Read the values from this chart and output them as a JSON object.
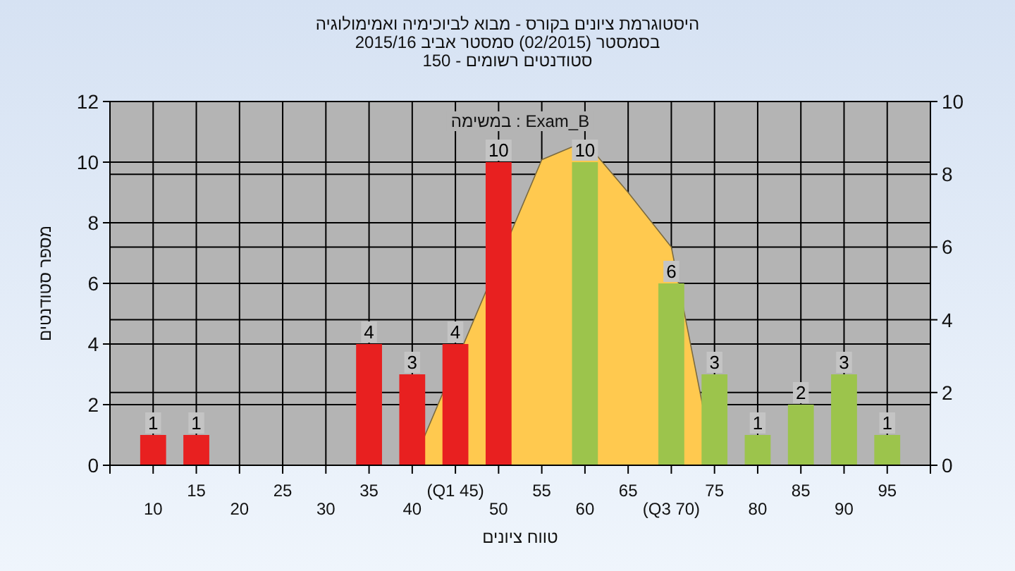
{
  "chart_data": {
    "type": "bar",
    "title": "היסטוגרמת ציונים בקורס - מבוא לביוכימיה ואמימולוגיה",
    "subtitle": "בסמסטר  (02/2015)  סמסטר אביב 2015/16",
    "annotations": [
      "סטודנטים רשומים - 150",
      "Exam_B : במשימה"
    ],
    "xlabel": "טווח ציונים",
    "ylabel": "מספר סטודנטים",
    "categories": [
      "10",
      "15",
      "20",
      "25",
      "30",
      "35",
      "40",
      "(Q1 45)",
      "50",
      "55",
      "60",
      "65",
      "(Q3 70)",
      "75",
      "80",
      "85",
      "90",
      "95"
    ],
    "series": [
      {
        "values": [
          1,
          1,
          null,
          null,
          null,
          4,
          3,
          4,
          10,
          null,
          10,
          null,
          6,
          3,
          1,
          2,
          3,
          1
        ],
        "value_labels": [
          "1",
          "1",
          null,
          null,
          null,
          "4",
          "3",
          "4",
          "10",
          null,
          "10",
          null,
          "6",
          "3",
          "1",
          "2",
          "3",
          "1"
        ],
        "colors": [
          "#e82020",
          "#e82020",
          null,
          null,
          null,
          "#e82020",
          "#e82020",
          "#e82020",
          "#e82020",
          null,
          "#9cc44c",
          null,
          "#9cc44c",
          "#9cc44c",
          "#9cc44c",
          "#9cc44c",
          "#9cc44c",
          "#9cc44c"
        ]
      },
      {
        "type": "area",
        "axis": "y2",
        "color": "#ffc94f",
        "values": [
          null,
          null,
          null,
          null,
          null,
          null,
          0,
          null,
          null,
          8.4,
          8.9,
          7.5,
          6.0,
          0,
          null,
          null,
          null,
          null
        ]
      }
    ],
    "ylim": [
      0,
      12
    ],
    "yticks": [
      0,
      2,
      4,
      6,
      8,
      10,
      12
    ],
    "y2lim": [
      0,
      10
    ],
    "y2ticks": [
      0,
      2,
      4,
      6,
      8,
      10
    ],
    "grid": true
  }
}
